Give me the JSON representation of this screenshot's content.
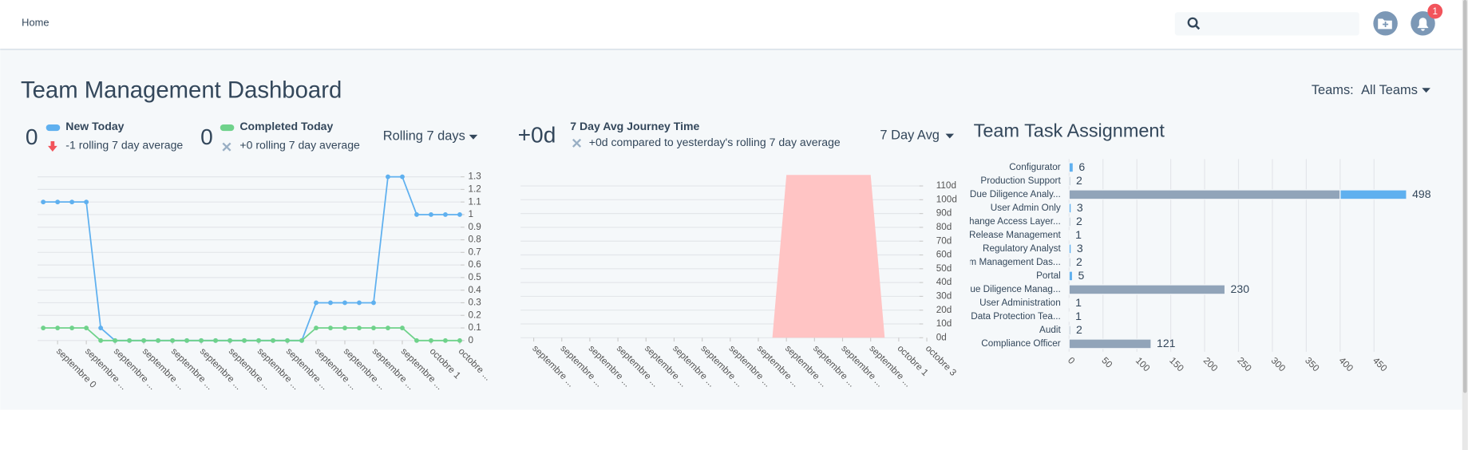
{
  "header": {
    "breadcrumb": "Home",
    "notification_count": 1
  },
  "title": "Team Management Dashboard",
  "filter": {
    "label": "Teams:",
    "value": "All Teams"
  },
  "widgets": [
    {
      "stats": [
        {
          "value": 0,
          "trend": "-1 rolling 7 day average"
        },
        {
          "value": 0,
          "trend": "+0 rolling 7 day average"
        }
      ],
      "period": "Rolling 7 days"
    },
    {
      "stats": [
        {
          "value": "+0d",
          "trend": "+0d compared to yesterday's rolling 7 day average"
        }
      ],
      "period": "7 Day Avg"
    }
  ],
  "chart_data": [
    {
      "type": "line",
      "categories": [
        null,
        "septembre 0",
        null,
        "septembre ...",
        null,
        "septembre ...",
        null,
        "septembre ...",
        null,
        "septembre ...",
        null,
        "septembre ...",
        null,
        "septembre ...",
        null,
        "septembre ...",
        null,
        "septembre ...",
        null,
        "septembre ...",
        null,
        "septembre ...",
        null,
        "septembre ...",
        null,
        "septembre ...",
        null,
        "octobre 1",
        null,
        "octobre ..."
      ],
      "series": [
        {
          "name": "New Today",
          "color": "#5fb0ef",
          "values": [
            1.1,
            1.1,
            1.1,
            1.1,
            0.1,
            0,
            0,
            0,
            0,
            0,
            0,
            0,
            0,
            0,
            0,
            0,
            0,
            0,
            0,
            0.3,
            0.3,
            0.3,
            0.3,
            0.3,
            1.3,
            1.3,
            1,
            1,
            1,
            1
          ]
        },
        {
          "name": "Completed Today",
          "color": "#6fd28b",
          "values": [
            0.1,
            0.1,
            0.1,
            0.1,
            0,
            0,
            0,
            0,
            0,
            0,
            0,
            0,
            0,
            0,
            0,
            0,
            0,
            0,
            0,
            0.1,
            0.1,
            0.1,
            0.1,
            0.1,
            0.1,
            0.1,
            0,
            0,
            0,
            0
          ]
        }
      ],
      "ylim": [
        0,
        1.3
      ],
      "yticks": [
        0,
        0.1,
        0.2,
        0.3,
        0.4,
        0.5,
        0.6,
        0.7,
        0.8,
        0.9,
        1,
        1.1,
        1.2,
        1.3
      ],
      "grid": true
    },
    {
      "type": "area",
      "title": "7 Day Avg Journey Time",
      "categories": [
        "septembre ...",
        null,
        "septembre ...",
        null,
        "septembre ...",
        null,
        "septembre ...",
        null,
        "septembre ...",
        null,
        "septembre ...",
        null,
        "septembre ...",
        null,
        "septembre ...",
        null,
        "septembre ...",
        null,
        "septembre ...",
        null,
        "septembre ...",
        null,
        "septembre ...",
        null,
        "septembre ...",
        null,
        "octobre 1",
        null,
        "octobre 3"
      ],
      "series": [
        {
          "color": "#ffc4c4",
          "values": [
            0,
            0,
            0,
            0,
            0,
            0,
            0,
            0,
            0,
            0,
            0,
            0,
            0,
            0,
            0,
            0,
            0,
            0,
            118,
            118,
            118,
            118,
            118,
            118,
            118,
            0,
            0,
            0,
            0
          ]
        }
      ],
      "ylim": [
        0,
        120
      ],
      "yticks": [
        {
          "value": 0,
          "label": "0d"
        },
        {
          "value": 10,
          "label": "10d"
        },
        {
          "value": 20,
          "label": "20d"
        },
        {
          "value": 30,
          "label": "30d"
        },
        {
          "value": 40,
          "label": "40d"
        },
        {
          "value": 50,
          "label": "50d"
        },
        {
          "value": 60,
          "label": "60d"
        },
        {
          "value": 70,
          "label": "70d"
        },
        {
          "value": 80,
          "label": "80d"
        },
        {
          "value": 90,
          "label": "90d"
        },
        {
          "value": 100,
          "label": "100d"
        },
        {
          "value": 110,
          "label": "110d"
        }
      ],
      "grid": true
    },
    {
      "type": "hbar",
      "title": "Team Task Assignment",
      "categories": [
        "Configurator",
        "Production Support",
        "Due Diligence Analy...",
        "User Admin Only",
        "Change Access Layer...",
        "Release Management",
        "Regulatory Analyst",
        "Team Management Das...",
        "Portal",
        "Due Diligence Manag...",
        "User Administration",
        "Data Protection Tea...",
        "Audit",
        "Compliance Officer"
      ],
      "series": [
        {
          "color": "#91a4b9",
          "values": [
            0,
            2,
            400,
            0,
            2,
            1,
            0,
            2,
            0,
            230,
            1,
            1,
            2,
            121
          ]
        },
        {
          "color": "#5fb0ef",
          "values": [
            6,
            0,
            98,
            3,
            0,
            0,
            3,
            0,
            5,
            0,
            0,
            0,
            0,
            0
          ]
        }
      ],
      "totals": [
        6,
        2,
        498,
        3,
        2,
        1,
        3,
        2,
        5,
        230,
        1,
        1,
        2,
        121
      ],
      "xlim": [
        0,
        500
      ],
      "xticks": [
        0,
        50,
        100,
        150,
        200,
        250,
        300,
        350,
        400,
        450
      ],
      "grid": true
    }
  ]
}
